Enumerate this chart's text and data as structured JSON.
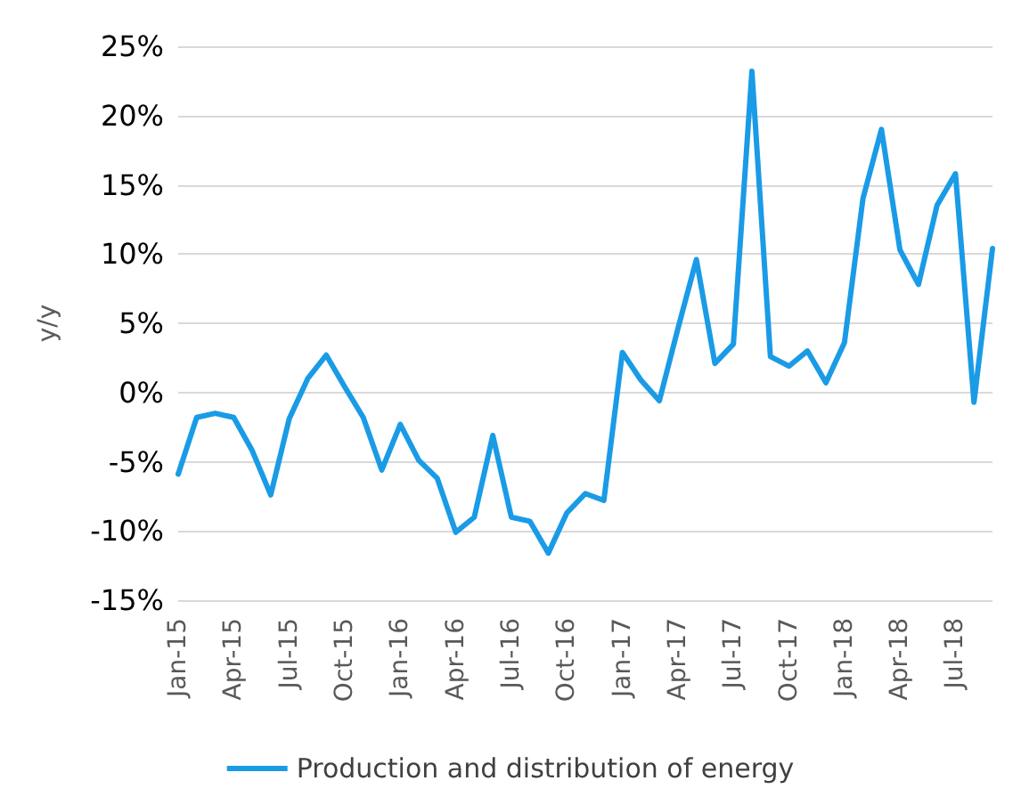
{
  "chart_data": {
    "type": "line",
    "ylabel": "y/y",
    "categories": [
      "Jan-15",
      null,
      null,
      "Apr-15",
      null,
      null,
      "Jul-15",
      null,
      null,
      "Oct-15",
      null,
      null,
      "Jan-16",
      null,
      null,
      "Apr-16",
      null,
      null,
      "Jul-16",
      null,
      null,
      "Oct-16",
      null,
      null,
      "Jan-17",
      null,
      null,
      "Apr-17",
      null,
      null,
      "Jul-17",
      null,
      null,
      "Oct-17",
      null,
      null,
      "Jan-18",
      null,
      null,
      "Apr-18",
      null,
      null,
      "Jul-18",
      null,
      null
    ],
    "series": [
      {
        "name": "Production and distribution of energy",
        "color": "#1a9be6",
        "values": [
          -5.9,
          -1.8,
          -1.5,
          -1.8,
          -4.2,
          -7.4,
          -1.9,
          1.0,
          2.7,
          0.4,
          -1.8,
          -5.6,
          -2.3,
          -4.9,
          -6.2,
          -10.1,
          -9.0,
          -3.1,
          -9.0,
          -9.3,
          -11.6,
          -8.7,
          -7.3,
          -7.8,
          2.9,
          0.9,
          -0.6,
          4.6,
          9.6,
          2.1,
          3.5,
          23.2,
          2.6,
          1.9,
          3.0,
          0.7,
          3.6,
          14.0,
          19.0,
          10.3,
          7.8,
          13.5,
          15.8,
          -0.7,
          10.4
        ]
      }
    ],
    "ylim": [
      -15,
      25
    ],
    "yticks": [
      {
        "value": -15,
        "label": "-15%"
      },
      {
        "value": -10,
        "label": "-10%"
      },
      {
        "value": -5,
        "label": "-5%"
      },
      {
        "value": 0,
        "label": "0%"
      },
      {
        "value": 5,
        "label": "5%"
      },
      {
        "value": 10,
        "label": "10%"
      },
      {
        "value": 15,
        "label": "15%"
      },
      {
        "value": 20,
        "label": "20%"
      },
      {
        "value": 25,
        "label": "25%"
      }
    ],
    "grid": "y",
    "legend": "bottom",
    "marker": "none",
    "line_style": "solid"
  }
}
